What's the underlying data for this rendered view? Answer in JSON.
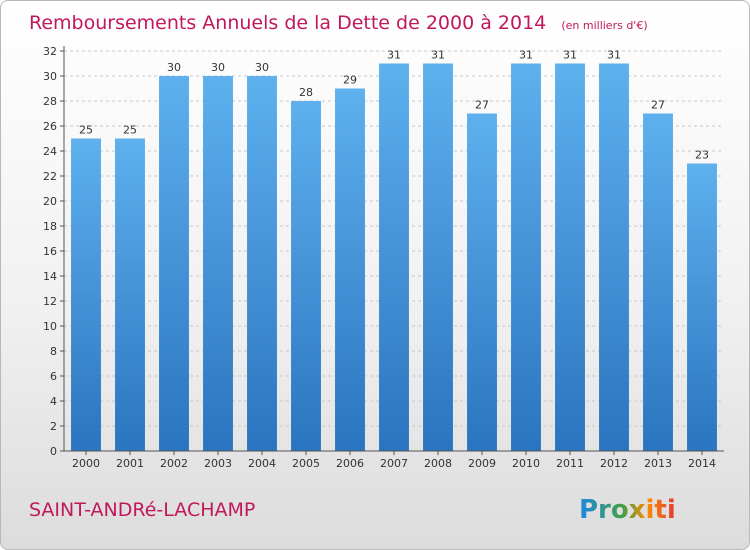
{
  "chart_data": {
    "type": "bar",
    "title": "Remboursements Annuels de la Dette de 2000 à 2014",
    "unit_label": "(en milliers d'€)",
    "categories": [
      "2000",
      "2001",
      "2002",
      "2003",
      "2004",
      "2005",
      "2006",
      "2007",
      "2008",
      "2009",
      "2010",
      "2011",
      "2012",
      "2013",
      "2014"
    ],
    "values": [
      25,
      25,
      30,
      30,
      30,
      28,
      29,
      31,
      31,
      27,
      31,
      31,
      31,
      27,
      23
    ],
    "ylim": [
      0,
      32
    ],
    "yticks": [
      0,
      2,
      4,
      6,
      8,
      10,
      12,
      14,
      16,
      18,
      20,
      22,
      24,
      26,
      28,
      30,
      32
    ],
    "grid": true,
    "bar_color": "#3c8fd6",
    "bar_color_top": "#5eb0ee",
    "bar_color_bottom": "#2a75bf"
  },
  "footer": {
    "commune": "SAINT-ANDRé-LACHAMP",
    "logo": "Proxiti"
  },
  "colors": {
    "title": "#c2185b",
    "grid": "#c8c8c8"
  }
}
